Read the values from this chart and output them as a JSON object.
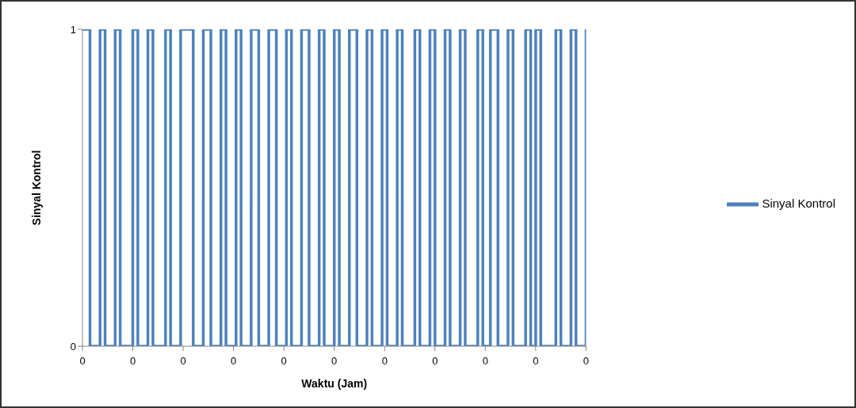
{
  "chart_data": {
    "type": "step",
    "xlabel": "Waktu (Jam)",
    "ylabel": "Sinyal Kontrol",
    "categories": [
      "0",
      null,
      null,
      null,
      null,
      null,
      null,
      null,
      null,
      null,
      null,
      null,
      null,
      null,
      null,
      null,
      null,
      null,
      null,
      null,
      "0",
      null,
      null,
      null,
      null,
      null,
      null,
      null,
      null,
      null,
      null,
      null,
      null,
      null,
      null,
      null,
      null,
      null,
      null,
      null,
      "0",
      null,
      null,
      null,
      null,
      null,
      null,
      null,
      null,
      null,
      null,
      null,
      null,
      null,
      null,
      null,
      null,
      null,
      null,
      null,
      "0",
      null,
      null,
      null,
      null,
      null,
      null,
      null,
      null,
      null,
      null,
      null,
      null,
      null,
      null,
      null,
      null,
      null,
      null,
      null,
      "0",
      null,
      null,
      null,
      null,
      null,
      null,
      null,
      null,
      null,
      null,
      null,
      null,
      null,
      null,
      null,
      null,
      null,
      null,
      null,
      "0",
      null,
      null,
      null,
      null,
      null,
      null,
      null,
      null,
      null,
      null,
      null,
      null,
      null,
      null,
      null,
      null,
      null,
      null,
      null,
      "0",
      null,
      null,
      null,
      null,
      null,
      null,
      null,
      null,
      null,
      null,
      null,
      null,
      null,
      null,
      null,
      null,
      null,
      null,
      null,
      "0",
      null,
      null,
      null,
      null,
      null,
      null,
      null,
      null,
      null,
      null,
      null,
      null,
      null,
      null,
      null,
      null,
      null,
      null,
      null,
      "0",
      null,
      null,
      null,
      null,
      null,
      null,
      null,
      null,
      null,
      null,
      null,
      null,
      null,
      null,
      null,
      null,
      null,
      null,
      null,
      "0",
      null,
      null,
      null,
      null,
      null,
      null,
      null,
      null,
      null,
      null,
      null,
      null,
      null,
      null,
      null,
      null,
      null,
      null,
      null,
      "0"
    ],
    "series": [
      {
        "name": "Sinyal Kontrol",
        "color": "#4f81bd",
        "values": [
          1,
          1,
          1,
          0,
          0,
          0,
          0,
          1,
          1,
          0,
          0,
          0,
          0,
          1,
          1,
          0,
          0,
          0,
          0,
          0,
          1,
          1,
          0,
          0,
          0,
          0,
          1,
          1,
          0,
          0,
          0,
          0,
          0,
          1,
          1,
          0,
          0,
          0,
          0,
          1,
          1,
          1,
          1,
          1,
          0,
          0,
          0,
          0,
          1,
          1,
          1,
          0,
          0,
          0,
          0,
          1,
          1,
          0,
          0,
          0,
          0,
          1,
          1,
          0,
          0,
          0,
          0,
          1,
          1,
          1,
          0,
          0,
          0,
          0,
          1,
          1,
          1,
          0,
          0,
          0,
          0,
          1,
          1,
          0,
          0,
          0,
          0,
          1,
          1,
          1,
          0,
          0,
          0,
          0,
          1,
          1,
          0,
          0,
          0,
          0,
          1,
          1,
          0,
          0,
          0,
          0,
          1,
          1,
          1,
          0,
          0,
          0,
          0,
          1,
          1,
          0,
          0,
          0,
          0,
          1,
          1,
          0,
          0,
          0,
          0,
          1,
          1,
          0,
          0,
          0,
          0,
          0,
          1,
          1,
          0,
          0,
          0,
          0,
          1,
          1,
          0,
          0,
          0,
          0,
          1,
          1,
          0,
          0,
          0,
          0,
          1,
          1,
          0,
          0,
          0,
          0,
          0,
          1,
          1,
          0,
          0,
          0,
          1,
          1,
          1,
          0,
          0,
          0,
          0,
          1,
          1,
          0,
          0,
          0,
          0,
          0,
          1,
          1,
          0,
          0,
          1,
          1,
          0,
          0,
          0,
          0,
          0,
          0,
          1,
          1,
          0,
          0,
          0,
          0,
          1,
          1,
          0,
          0,
          0,
          0,
          1
        ]
      }
    ],
    "ylim": [
      0,
      1
    ],
    "yticks": [
      0,
      1
    ],
    "grid": false,
    "legend": "right",
    "marker": "none",
    "line_style": "solid"
  }
}
